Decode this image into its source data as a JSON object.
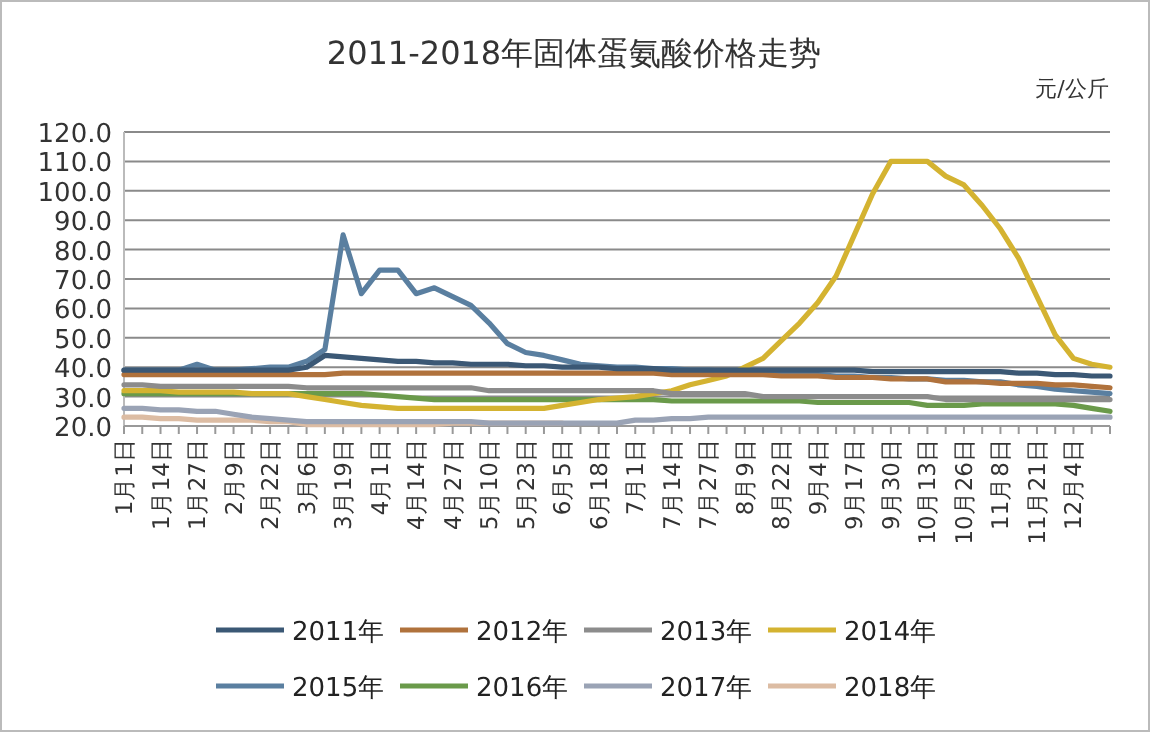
{
  "chart_data": {
    "type": "line",
    "title": "2011-2018年固体蛋氨酸价格走势",
    "ylabel": "元/公斤",
    "categories": [
      "1月1日",
      null,
      "1月14日",
      null,
      "1月27日",
      null,
      "2月9日",
      null,
      "2月22日",
      null,
      "3月6日",
      null,
      "3月19日",
      null,
      "4月1日",
      null,
      "4月14日",
      null,
      "4月27日",
      null,
      "5月10日",
      null,
      "5月23日",
      null,
      "6月5日",
      null,
      "6月18日",
      null,
      "7月1日",
      null,
      "7月14日",
      null,
      "7月27日",
      null,
      "8月9日",
      null,
      "8月22日",
      null,
      "9月4日",
      null,
      "9月17日",
      null,
      "9月30日",
      null,
      "10月13日",
      null,
      "10月26日",
      null,
      "11月8日",
      null,
      "11月21日",
      null,
      "12月4日",
      null,
      null
    ],
    "ylim": [
      20,
      120
    ],
    "yticks": [
      {
        "value": 20,
        "label": "20.0"
      },
      {
        "value": 30,
        "label": "30.0"
      },
      {
        "value": 40,
        "label": "40.0"
      },
      {
        "value": 50,
        "label": "50.0"
      },
      {
        "value": 60,
        "label": "60.0"
      },
      {
        "value": 70,
        "label": "70.0"
      },
      {
        "value": 80,
        "label": "80.0"
      },
      {
        "value": 90,
        "label": "90.0"
      },
      {
        "value": 100,
        "label": "100.0"
      },
      {
        "value": 110,
        "label": "110.0"
      },
      {
        "value": 120,
        "label": "120.0"
      }
    ],
    "grid": "y",
    "legend": "bottom",
    "series": [
      {
        "name": "2011年",
        "color": "#3b5875",
        "values": [
          39,
          39,
          39,
          39,
          39,
          39,
          39,
          39,
          39,
          39,
          40,
          44,
          43.5,
          43,
          42.5,
          42,
          42,
          41.5,
          41.5,
          41,
          41,
          41,
          40.5,
          40.5,
          40,
          40,
          40,
          39.5,
          39.5,
          39.5,
          39,
          39,
          39,
          39,
          39,
          39,
          39,
          39,
          39,
          39,
          39,
          38.5,
          38.5,
          38.5,
          38.5,
          38.5,
          38.5,
          38.5,
          38.5,
          38,
          38,
          37.5,
          37.5,
          37,
          37
        ]
      },
      {
        "name": "2012年",
        "color": "#b0723c",
        "values": [
          37.5,
          37.5,
          37.5,
          37.5,
          37.5,
          37.5,
          37.5,
          37.5,
          37.5,
          37.5,
          37.5,
          37.5,
          38,
          38,
          38,
          38,
          38,
          38,
          38,
          38,
          38,
          38,
          38,
          38,
          38,
          38,
          38,
          38,
          38,
          38,
          37.5,
          37.5,
          37.5,
          37.5,
          37.5,
          37.5,
          37,
          37,
          37,
          36.5,
          36.5,
          36.5,
          36,
          36,
          36,
          35,
          35,
          35,
          34.5,
          34.5,
          34.5,
          34,
          34,
          33.5,
          33
        ]
      },
      {
        "name": "2013年",
        "color": "#8c8c8c",
        "values": [
          34,
          34,
          33.5,
          33.5,
          33.5,
          33.5,
          33.5,
          33.5,
          33.5,
          33.5,
          33,
          33,
          33,
          33,
          33,
          33,
          33,
          33,
          33,
          33,
          32,
          32,
          32,
          32,
          32,
          32,
          32,
          32,
          32,
          32,
          31,
          31,
          31,
          31,
          31,
          30,
          30,
          30,
          30,
          30,
          30,
          30,
          30,
          30,
          30,
          29,
          29,
          29,
          29,
          29,
          29,
          29,
          29,
          29,
          29
        ]
      },
      {
        "name": "2014年",
        "color": "#d4b331",
        "values": [
          32,
          32,
          32,
          31.5,
          31.5,
          31.5,
          31.5,
          31,
          31,
          31,
          30,
          29,
          28,
          27,
          26.5,
          26,
          26,
          26,
          26,
          26,
          26,
          26,
          26,
          26,
          27,
          28,
          29,
          29.5,
          30,
          31,
          32,
          34,
          35.5,
          37,
          40,
          43,
          49,
          55,
          62,
          71,
          85,
          99,
          110,
          110,
          110,
          105,
          102,
          95,
          87,
          77,
          64,
          51,
          43,
          41,
          40
        ]
      },
      {
        "name": "2015年",
        "color": "#5a7fa0",
        "values": [
          39,
          39,
          39,
          39,
          41,
          39,
          39,
          39.5,
          40,
          40,
          42,
          46,
          85,
          65,
          73,
          73,
          65,
          67,
          64,
          61,
          55,
          48,
          45,
          44,
          42.5,
          41,
          40.5,
          40,
          40,
          39.5,
          39.5,
          39,
          39,
          38.5,
          38.5,
          38,
          38,
          37.5,
          37.5,
          37,
          37,
          36.5,
          36.5,
          36,
          36,
          35.5,
          35.5,
          35,
          35,
          34,
          33.5,
          32.5,
          32,
          31.5,
          31
        ]
      },
      {
        "name": "2016年",
        "color": "#6a9a4a",
        "values": [
          31,
          31,
          31,
          31,
          31,
          31,
          31,
          31,
          31,
          31,
          31,
          31,
          31,
          31,
          30.5,
          30,
          29.5,
          29,
          29,
          29,
          29,
          29,
          29,
          29,
          29,
          29,
          29,
          29,
          29,
          29,
          28.5,
          28.5,
          28.5,
          28.5,
          28.5,
          28.5,
          28.5,
          28.5,
          28,
          28,
          28,
          28,
          28,
          28,
          27,
          27,
          27,
          27.5,
          27.5,
          27.5,
          27.5,
          27.5,
          27,
          26,
          25
        ]
      },
      {
        "name": "2017年",
        "color": "#9aa3b5",
        "values": [
          26,
          26,
          25.5,
          25.5,
          25,
          25,
          24,
          23,
          22.5,
          22,
          21.5,
          21.5,
          21.5,
          21.5,
          21.5,
          21.5,
          21.5,
          21.5,
          21.5,
          21.5,
          21,
          21,
          21,
          21,
          21,
          21,
          21,
          21,
          22,
          22,
          22.5,
          22.5,
          23,
          23,
          23,
          23,
          23,
          23,
          23,
          23,
          23,
          23,
          23,
          23,
          23,
          23,
          23,
          23,
          23,
          23,
          23,
          23,
          23,
          23,
          23
        ]
      },
      {
        "name": "2018年",
        "color": "#dcbca3",
        "values": [
          23,
          23,
          22.5,
          22.5,
          22,
          22,
          22,
          22,
          21.5,
          21.5,
          20.5,
          20.5,
          20.5,
          20.5,
          20.5,
          20.5,
          20.5,
          20.5,
          21,
          21,
          21,
          21,
          21,
          21,
          21,
          null,
          null,
          null,
          null,
          null,
          null,
          null,
          null,
          null,
          null,
          null,
          null,
          null,
          null,
          null,
          null,
          null,
          null,
          null,
          null,
          null,
          null,
          null,
          null,
          null,
          null,
          null,
          null,
          null,
          null
        ]
      }
    ]
  }
}
